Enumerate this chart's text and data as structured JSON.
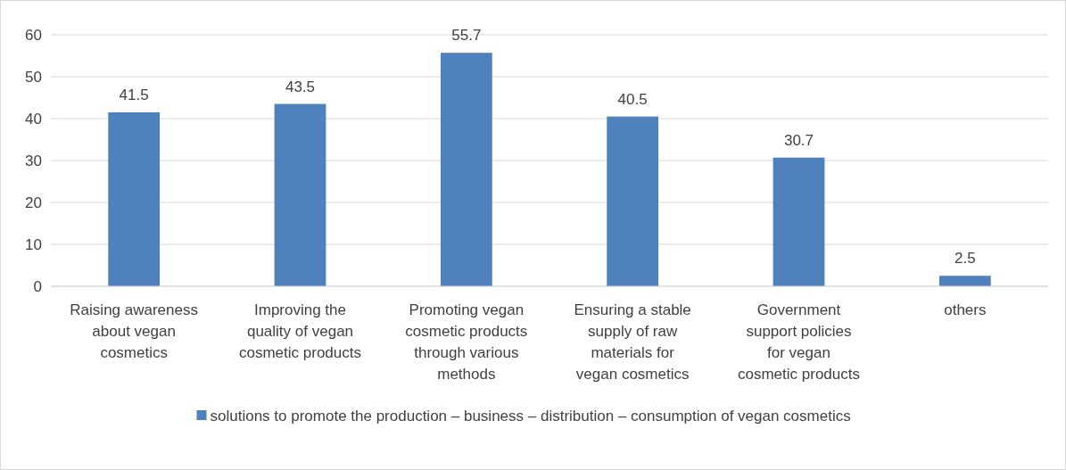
{
  "chart_data": {
    "type": "bar",
    "categories": [
      "Raising awareness about vegan cosmetics",
      "Improving the quality of vegan cosmetic products",
      "Promoting vegan cosmetic products through various methods",
      "Ensuring a stable supply of raw materials for vegan cosmetics",
      "Government support policies for vegan cosmetic products",
      "others"
    ],
    "series": [
      {
        "name": "solutions to promote the production – business – distribution – consumption of vegan cosmetics",
        "color": "#4f81bd",
        "values": [
          41.5,
          43.5,
          55.7,
          40.5,
          30.7,
          2.5
        ]
      }
    ],
    "ylim": [
      0,
      60
    ],
    "yticks": [
      0,
      10,
      20,
      30,
      40,
      50,
      60
    ],
    "grid": "y",
    "legend": "bottom",
    "data_labels": true
  }
}
